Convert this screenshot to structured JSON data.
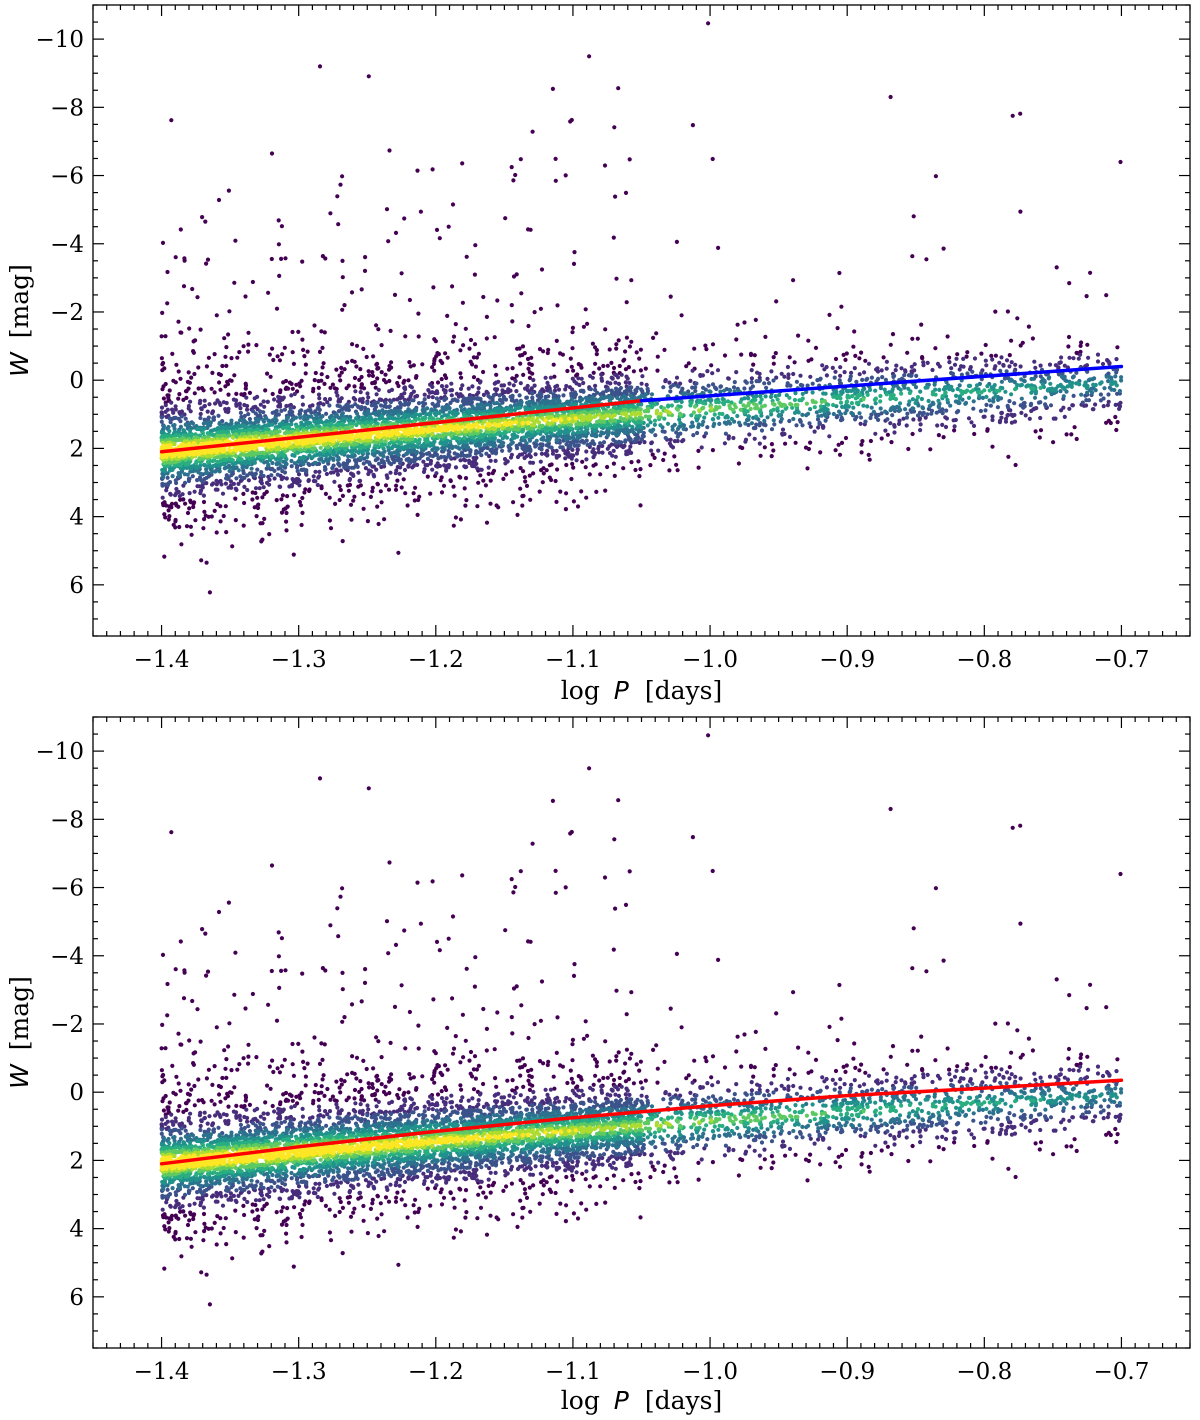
{
  "chart_data": [
    {
      "type": "scatter",
      "xlabel_prefix": "log",
      "xlabel_var": "P",
      "xlabel_unit": "[days]",
      "ylabel_var": "W",
      "ylabel_unit": "[mag]",
      "xlim": [
        -1.45,
        -0.65
      ],
      "ylim": [
        7.5,
        -11
      ],
      "y_inverted": true,
      "xticks": [
        -1.4,
        -1.3,
        -1.2,
        -1.1,
        -1.0,
        -0.9,
        -0.8,
        -0.7
      ],
      "xtick_labels": [
        "−1.4",
        "−1.3",
        "−1.2",
        "−1.1",
        "−1.0",
        "−0.9",
        "−0.8",
        "−0.7"
      ],
      "yticks": [
        -10,
        -8,
        -6,
        -4,
        -2,
        0,
        2,
        4,
        6
      ],
      "ytick_labels": [
        "−10",
        "−8",
        "−6",
        "−4",
        "−2",
        "0",
        "2",
        "4",
        "6"
      ],
      "grid": false,
      "point_colormap": "viridis (point density)",
      "fit_lines": [
        {
          "color": "#ff0000",
          "x": [
            -1.4,
            -1.05
          ],
          "y": [
            2.1,
            0.6
          ]
        },
        {
          "color": "#0000ff",
          "x": [
            -1.05,
            -0.7
          ],
          "y": [
            0.6,
            -0.4
          ]
        }
      ]
    },
    {
      "type": "scatter",
      "xlabel_prefix": "log",
      "xlabel_var": "P",
      "xlabel_unit": "[days]",
      "ylabel_var": "W",
      "ylabel_unit": "[mag]",
      "xlim": [
        -1.45,
        -0.65
      ],
      "ylim": [
        7.5,
        -11
      ],
      "y_inverted": true,
      "xticks": [
        -1.4,
        -1.3,
        -1.2,
        -1.1,
        -1.0,
        -0.9,
        -0.8,
        -0.7
      ],
      "xtick_labels": [
        "−1.4",
        "−1.3",
        "−1.2",
        "−1.1",
        "−1.0",
        "−0.9",
        "−0.8",
        "−0.7"
      ],
      "yticks": [
        -10,
        -8,
        -6,
        -4,
        -2,
        0,
        2,
        4,
        6
      ],
      "ytick_labels": [
        "−10",
        "−8",
        "−6",
        "−4",
        "−2",
        "0",
        "2",
        "4",
        "6"
      ],
      "grid": false,
      "point_colormap": "viridis (point density)",
      "fit_lines": [
        {
          "color": "#ff0000",
          "x": [
            -1.4,
            -1.3,
            -1.2,
            -1.1,
            -1.0,
            -0.9,
            -0.8,
            -0.7
          ],
          "y": [
            2.1,
            1.6,
            1.15,
            0.75,
            0.4,
            0.1,
            -0.12,
            -0.35
          ]
        }
      ]
    }
  ]
}
